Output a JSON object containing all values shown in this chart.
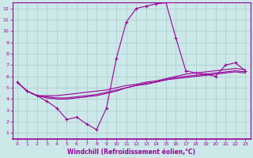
{
  "bg_color": "#cce8e8",
  "line_color": "#990099",
  "grid_color": "#aacccc",
  "xlabel": "Windchill (Refroidissement éolien,°C)",
  "xlim": [
    -0.5,
    23.5
  ],
  "ylim": [
    0.5,
    12.5
  ],
  "xticks": [
    0,
    1,
    2,
    3,
    4,
    5,
    6,
    7,
    8,
    9,
    10,
    11,
    12,
    13,
    14,
    15,
    16,
    17,
    18,
    19,
    20,
    21,
    22,
    23
  ],
  "yticks": [
    1,
    2,
    3,
    4,
    5,
    6,
    7,
    8,
    9,
    10,
    11,
    12
  ],
  "curve1_x": [
    0,
    1,
    2,
    3,
    4,
    5,
    6,
    7,
    8,
    9,
    10,
    11,
    12,
    13,
    14,
    15,
    16,
    17,
    18,
    19,
    20,
    21,
    22,
    23
  ],
  "curve1_y": [
    5.5,
    4.7,
    4.3,
    3.8,
    3.2,
    2.2,
    2.4,
    1.8,
    1.3,
    3.2,
    7.6,
    10.8,
    12.0,
    12.2,
    12.4,
    12.5,
    9.4,
    6.5,
    6.3,
    6.2,
    6.0,
    7.0,
    7.2,
    6.5
  ],
  "curve2_x": [
    0,
    1,
    2,
    3,
    4,
    5,
    6,
    7,
    8,
    9,
    10,
    11,
    12,
    13,
    14,
    15,
    16,
    17,
    18,
    19,
    20,
    21,
    22,
    23
  ],
  "curve2_y": [
    5.5,
    4.7,
    4.3,
    4.3,
    4.3,
    4.4,
    4.5,
    4.6,
    4.7,
    4.8,
    5.0,
    5.2,
    5.3,
    5.5,
    5.6,
    5.8,
    6.0,
    6.2,
    6.3,
    6.4,
    6.5,
    6.6,
    6.7,
    6.6
  ],
  "curve3_x": [
    0,
    1,
    2,
    3,
    4,
    5,
    6,
    7,
    8,
    9,
    10,
    11,
    12,
    13,
    14,
    15,
    16,
    17,
    18,
    19,
    20,
    21,
    22,
    23
  ],
  "curve3_y": [
    5.5,
    4.7,
    4.3,
    4.2,
    4.1,
    4.1,
    4.2,
    4.3,
    4.4,
    4.6,
    4.8,
    5.0,
    5.2,
    5.4,
    5.5,
    5.7,
    5.9,
    6.0,
    6.1,
    6.2,
    6.3,
    6.4,
    6.5,
    6.4
  ],
  "curve4_x": [
    0,
    1,
    2,
    3,
    4,
    5,
    6,
    7,
    8,
    9,
    10,
    11,
    12,
    13,
    14,
    15,
    16,
    17,
    18,
    19,
    20,
    21,
    22,
    23
  ],
  "curve4_y": [
    5.5,
    4.7,
    4.3,
    4.1,
    4.0,
    4.0,
    4.1,
    4.2,
    4.3,
    4.5,
    4.7,
    5.0,
    5.2,
    5.3,
    5.5,
    5.7,
    5.8,
    5.9,
    6.0,
    6.1,
    6.2,
    6.3,
    6.4,
    6.3
  ]
}
